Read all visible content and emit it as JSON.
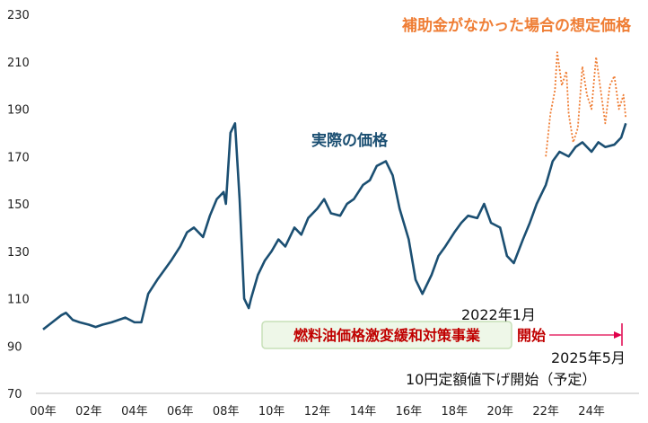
{
  "colors": {
    "actual": "#1b4f72",
    "hypothetical": "#ef7d34",
    "highlight_text": "#c00000",
    "box_fill": "#eef7e8",
    "box_border": "#c7e0b8",
    "marker": "#e0004a"
  },
  "chart_data": {
    "type": "line",
    "title": "",
    "xlabel": "",
    "ylabel": "",
    "ylim": [
      70,
      230
    ],
    "yticks": [
      70,
      90,
      110,
      130,
      150,
      170,
      190,
      210,
      230
    ],
    "xlim": [
      2000,
      2026
    ],
    "xticks": [
      {
        "value": 2000,
        "label": "00年"
      },
      {
        "value": 2002,
        "label": "02年"
      },
      {
        "value": 2004,
        "label": "04年"
      },
      {
        "value": 2006,
        "label": "06年"
      },
      {
        "value": 2008,
        "label": "08年"
      },
      {
        "value": 2010,
        "label": "10年"
      },
      {
        "value": 2012,
        "label": "12年"
      },
      {
        "value": 2014,
        "label": "14年"
      },
      {
        "value": 2016,
        "label": "16年"
      },
      {
        "value": 2018,
        "label": "18年"
      },
      {
        "value": 2020,
        "label": "20年"
      },
      {
        "value": 2022,
        "label": "22年"
      },
      {
        "value": 2024,
        "label": "24年"
      }
    ],
    "series": [
      {
        "name": "実際の価格",
        "style": "solid",
        "x": [
          2000.0,
          2000.4,
          2000.8,
          2001.0,
          2001.3,
          2001.6,
          2002.0,
          2002.3,
          2002.6,
          2003.0,
          2003.3,
          2003.6,
          2004.0,
          2004.3,
          2004.6,
          2005.0,
          2005.3,
          2005.6,
          2006.0,
          2006.3,
          2006.6,
          2007.0,
          2007.3,
          2007.6,
          2007.9,
          2008.0,
          2008.2,
          2008.4,
          2008.6,
          2008.8,
          2009.0,
          2009.1,
          2009.4,
          2009.7,
          2010.0,
          2010.3,
          2010.6,
          2011.0,
          2011.3,
          2011.6,
          2012.0,
          2012.3,
          2012.6,
          2013.0,
          2013.3,
          2013.6,
          2014.0,
          2014.3,
          2014.6,
          2015.0,
          2015.3,
          2015.6,
          2016.0,
          2016.3,
          2016.6,
          2017.0,
          2017.3,
          2017.6,
          2018.0,
          2018.3,
          2018.6,
          2019.0,
          2019.3,
          2019.6,
          2020.0,
          2020.3,
          2020.6,
          2021.0,
          2021.3,
          2021.6,
          2022.0,
          2022.3,
          2022.6,
          2023.0,
          2023.3,
          2023.6,
          2024.0,
          2024.3,
          2024.6,
          2025.0,
          2025.3,
          2025.5
        ],
        "y": [
          97,
          100,
          103,
          104,
          101,
          100,
          99,
          98,
          99,
          100,
          101,
          102,
          100,
          100,
          112,
          118,
          122,
          126,
          132,
          138,
          140,
          136,
          145,
          152,
          155,
          150,
          180,
          184,
          152,
          110,
          106,
          110,
          120,
          126,
          130,
          135,
          132,
          140,
          137,
          144,
          148,
          152,
          146,
          145,
          150,
          152,
          158,
          160,
          166,
          168,
          162,
          148,
          135,
          118,
          112,
          120,
          128,
          132,
          138,
          142,
          145,
          144,
          150,
          142,
          140,
          128,
          125,
          135,
          142,
          150,
          158,
          168,
          172,
          170,
          174,
          176,
          172,
          176,
          174,
          175,
          178,
          184
        ],
        "color_key": "actual"
      },
      {
        "name": "補助金がなかった場合の想定価格",
        "style": "dotted",
        "x": [
          2022.0,
          2022.2,
          2022.4,
          2022.5,
          2022.7,
          2022.9,
          2023.0,
          2023.2,
          2023.4,
          2023.6,
          2023.8,
          2024.0,
          2024.2,
          2024.4,
          2024.6,
          2024.8,
          2025.0,
          2025.2,
          2025.4,
          2025.5
        ],
        "y": [
          170,
          188,
          198,
          214,
          200,
          206,
          188,
          176,
          182,
          208,
          196,
          190,
          212,
          198,
          184,
          200,
          204,
          190,
          196,
          186
        ],
        "color_key": "hypothetical"
      }
    ]
  },
  "labels": {
    "actual_series": "実際の価格",
    "hypothetical_series": "補助金がなかった場合の想定価格",
    "program_box": "燃料油価格激変緩和対策事業",
    "start_date": "2022年1月",
    "start_word": "開始",
    "cut_date": "2025年5月",
    "cut_desc": "10円定額値下げ開始（予定）"
  }
}
